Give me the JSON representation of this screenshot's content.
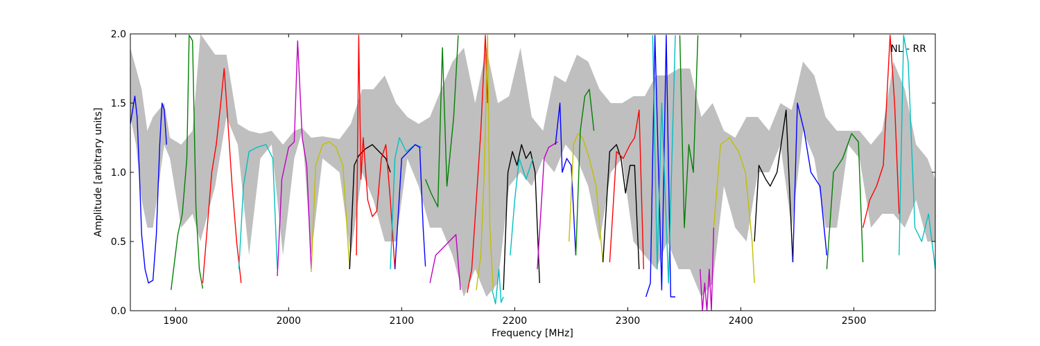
{
  "chart_data": {
    "type": "line",
    "title": "",
    "xlabel": "Frequency [MHz]",
    "ylabel": "Amplitude [arbitrary units]",
    "xlim": [
      1860,
      2572
    ],
    "ylim": [
      0.0,
      2.0
    ],
    "xticks": [
      1900,
      2000,
      2100,
      2200,
      2300,
      2400,
      2500
    ],
    "xtick_labels": [
      "1900",
      "2000",
      "2100",
      "2200",
      "2300",
      "2400",
      "2500"
    ],
    "yticks": [
      0.0,
      0.5,
      1.0,
      1.5,
      2.0
    ],
    "ytick_labels": [
      "0.0",
      "0.5",
      "1.0",
      "1.5",
      "2.0"
    ],
    "annotation": "NL - RR",
    "annotation_position": "top-right",
    "grid": false,
    "colors": {
      "band": "#bfbfbf",
      "blue": "#0000ff",
      "green": "#008000",
      "red": "#ff0000",
      "cyan": "#00bfbf",
      "magenta": "#bf00bf",
      "yellow": "#bfbf00",
      "black": "#000000"
    },
    "envelope": {
      "x": [
        1860,
        1865,
        1870,
        1875,
        1880,
        1890,
        1895,
        1905,
        1915,
        1922,
        1935,
        1945,
        1955,
        1965,
        1975,
        1985,
        1995,
        2005,
        2012,
        2020,
        2030,
        2045,
        2055,
        2065,
        2075,
        2085,
        2095,
        2105,
        2115,
        2125,
        2135,
        2145,
        2155,
        2165,
        2175,
        2185,
        2195,
        2205,
        2215,
        2225,
        2235,
        2245,
        2255,
        2265,
        2275,
        2285,
        2295,
        2305,
        2315,
        2325,
        2335,
        2345,
        2355,
        2365,
        2375,
        2385,
        2395,
        2405,
        2415,
        2425,
        2435,
        2445,
        2455,
        2465,
        2475,
        2485,
        2495,
        2505,
        2515,
        2525,
        2535,
        2545,
        2555,
        2565,
        2572
      ],
      "upper": [
        1.9,
        1.75,
        1.6,
        1.3,
        1.4,
        1.5,
        1.25,
        1.2,
        1.3,
        2.0,
        1.85,
        1.85,
        1.35,
        1.3,
        1.28,
        1.3,
        1.2,
        1.3,
        1.32,
        1.25,
        1.26,
        1.24,
        1.35,
        1.6,
        1.6,
        1.7,
        1.5,
        1.4,
        1.35,
        1.4,
        1.6,
        1.8,
        1.9,
        1.5,
        1.9,
        1.5,
        1.55,
        1.9,
        1.4,
        1.3,
        1.7,
        1.65,
        1.85,
        1.8,
        1.6,
        1.5,
        1.5,
        1.55,
        1.55,
        1.7,
        1.7,
        1.75,
        1.75,
        1.4,
        1.5,
        1.3,
        1.25,
        1.4,
        1.4,
        1.3,
        1.5,
        1.45,
        1.8,
        1.7,
        1.4,
        1.3,
        1.3,
        1.3,
        1.2,
        1.3,
        1.8,
        1.6,
        1.2,
        1.1,
        0.95
      ],
      "lower": [
        1.4,
        1.2,
        0.8,
        0.6,
        0.6,
        1.2,
        1.1,
        0.6,
        0.7,
        0.5,
        0.9,
        1.4,
        1.2,
        0.4,
        1.1,
        1.2,
        0.4,
        1.1,
        1.3,
        0.4,
        1.1,
        1.0,
        0.4,
        1.0,
        0.8,
        0.5,
        0.5,
        1.1,
        0.9,
        0.6,
        0.6,
        0.4,
        0.1,
        0.3,
        0.1,
        0.2,
        0.9,
        1.0,
        0.9,
        1.1,
        1.0,
        1.2,
        1.1,
        0.9,
        0.5,
        1.0,
        1.1,
        0.5,
        0.4,
        0.3,
        0.5,
        0.3,
        0.3,
        0.1,
        0.2,
        0.9,
        0.6,
        0.5,
        1.0,
        1.0,
        1.2,
        0.6,
        1.3,
        1.1,
        0.6,
        0.6,
        1.2,
        1.1,
        0.6,
        0.7,
        0.7,
        0.6,
        0.8,
        0.5,
        0.5
      ]
    },
    "series": [
      {
        "color": "blue",
        "x": [
          1860,
          1862,
          1864,
          1866,
          1868,
          1870,
          1873,
          1876,
          1880,
          1883,
          1886,
          1888,
          1890,
          1892
        ],
        "y": [
          1.35,
          1.45,
          1.55,
          1.4,
          1.0,
          0.55,
          0.3,
          0.2,
          0.22,
          0.55,
          1.2,
          1.5,
          1.45,
          1.2
        ]
      },
      {
        "color": "green",
        "x": [
          1896,
          1899,
          1902,
          1906,
          1910,
          1912,
          1913,
          1915,
          1918,
          1921,
          1924
        ],
        "y": [
          0.15,
          0.35,
          0.55,
          0.7,
          1.1,
          1.99,
          1.98,
          1.95,
          0.75,
          0.3,
          0.16
        ]
      },
      {
        "color": "red",
        "x": [
          1924,
          1928,
          1932,
          1936,
          1940,
          1943,
          1946,
          1950,
          1954,
          1958
        ],
        "y": [
          0.2,
          0.6,
          1.0,
          1.2,
          1.5,
          1.75,
          1.4,
          0.9,
          0.5,
          0.2
        ]
      },
      {
        "color": "cyan",
        "x": [
          1956,
          1960,
          1965,
          1972,
          1980,
          1986,
          1990
        ],
        "y": [
          0.3,
          0.9,
          1.15,
          1.18,
          1.2,
          1.1,
          0.3
        ]
      },
      {
        "color": "magenta",
        "x": [
          1990,
          1994,
          2000,
          2005,
          2008,
          2012,
          2016,
          2020
        ],
        "y": [
          0.25,
          0.95,
          1.18,
          1.22,
          1.95,
          1.25,
          1.05,
          0.3
        ]
      },
      {
        "color": "yellow",
        "x": [
          2020,
          2024,
          2030,
          2036,
          2042,
          2048,
          2054
        ],
        "y": [
          0.28,
          1.05,
          1.2,
          1.22,
          1.18,
          1.05,
          0.3
        ]
      },
      {
        "color": "black",
        "x": [
          2054,
          2058,
          2062,
          2068,
          2074,
          2080,
          2086,
          2090
        ],
        "y": [
          0.3,
          1.05,
          1.12,
          1.17,
          1.2,
          1.15,
          1.1,
          1.0
        ]
      },
      {
        "color": "red",
        "x": [
          2060,
          2062,
          2064,
          2066,
          2070,
          2074,
          2078,
          2082,
          2086,
          2090,
          2094
        ],
        "y": [
          0.4,
          1.99,
          0.95,
          1.25,
          0.8,
          0.68,
          0.72,
          1.1,
          1.2,
          0.8,
          0.3
        ]
      },
      {
        "color": "cyan",
        "x": [
          2090,
          2094,
          2098,
          2104,
          2112,
          2118
        ],
        "y": [
          0.3,
          1.1,
          1.25,
          1.15,
          1.2,
          1.18
        ]
      },
      {
        "color": "blue",
        "x": [
          2094,
          2100,
          2106,
          2112,
          2116,
          2119,
          2121
        ],
        "y": [
          0.3,
          1.1,
          1.15,
          1.2,
          1.18,
          0.6,
          0.32
        ]
      },
      {
        "color": "green",
        "x": [
          2121,
          2126,
          2132,
          2136,
          2140,
          2146,
          2150
        ],
        "y": [
          0.95,
          0.85,
          0.75,
          1.9,
          0.9,
          1.4,
          1.99
        ]
      },
      {
        "color": "magenta",
        "x": [
          2125,
          2130,
          2136,
          2142,
          2148,
          2152
        ],
        "y": [
          0.2,
          0.4,
          0.45,
          0.5,
          0.55,
          0.15
        ]
      },
      {
        "color": "red",
        "x": [
          2158,
          2162,
          2166,
          2170,
          2174,
          2176
        ],
        "y": [
          0.13,
          0.3,
          0.8,
          1.3,
          1.99,
          1.5
        ]
      },
      {
        "color": "yellow",
        "x": [
          2166,
          2170,
          2173,
          2176,
          2178,
          2181
        ],
        "y": [
          0.15,
          0.4,
          1.0,
          1.99,
          0.6,
          0.15
        ]
      },
      {
        "color": "cyan",
        "x": [
          2180,
          2183,
          2186,
          2188,
          2190
        ],
        "y": [
          0.15,
          0.05,
          0.3,
          0.06,
          0.1
        ]
      },
      {
        "color": "black",
        "x": [
          2190,
          2194,
          2198,
          2202,
          2206,
          2210,
          2214,
          2218,
          2222
        ],
        "y": [
          0.15,
          1.0,
          1.15,
          1.05,
          1.2,
          1.1,
          1.15,
          1.0,
          0.2
        ]
      },
      {
        "color": "cyan",
        "x": [
          2196,
          2200,
          2204,
          2210,
          2216
        ],
        "y": [
          0.4,
          0.8,
          1.1,
          0.95,
          1.1
        ]
      },
      {
        "color": "magenta",
        "x": [
          2220,
          2226,
          2230,
          2234,
          2238
        ],
        "y": [
          0.3,
          1.1,
          1.18,
          1.2,
          1.22
        ]
      },
      {
        "color": "blue",
        "x": [
          2236,
          2240,
          2242,
          2246,
          2250,
          2254
        ],
        "y": [
          1.2,
          1.5,
          1.0,
          1.1,
          1.05,
          0.4
        ]
      },
      {
        "color": "yellow",
        "x": [
          2248,
          2252,
          2256,
          2260,
          2266,
          2272,
          2278
        ],
        "y": [
          0.5,
          1.2,
          1.28,
          1.25,
          1.1,
          0.9,
          0.35
        ]
      },
      {
        "color": "green",
        "x": [
          2254,
          2258,
          2262,
          2266,
          2270
        ],
        "y": [
          0.4,
          1.3,
          1.55,
          1.6,
          1.3
        ]
      },
      {
        "color": "black",
        "x": [
          2278,
          2284,
          2290,
          2294,
          2298,
          2302,
          2306,
          2310
        ],
        "y": [
          0.35,
          1.15,
          1.2,
          1.1,
          0.85,
          1.05,
          1.05,
          0.3
        ]
      },
      {
        "color": "red",
        "x": [
          2284,
          2290,
          2296,
          2302,
          2306,
          2310,
          2314
        ],
        "y": [
          0.35,
          1.15,
          1.1,
          1.2,
          1.25,
          1.45,
          0.3
        ]
      },
      {
        "color": "blue",
        "x": [
          2316,
          2320,
          2324,
          2330,
          2334,
          2338,
          2342
        ],
        "y": [
          0.1,
          0.2,
          1.99,
          0.15,
          1.99,
          0.1,
          0.1
        ]
      },
      {
        "color": "cyan",
        "x": [
          2322,
          2326,
          2330,
          2336,
          2342
        ],
        "y": [
          1.99,
          0.3,
          1.5,
          0.2,
          1.99
        ]
      },
      {
        "color": "green",
        "x": [
          2346,
          2350,
          2354,
          2358,
          2362
        ],
        "y": [
          1.99,
          0.6,
          1.2,
          1.0,
          1.99
        ]
      },
      {
        "color": "magenta",
        "x": [
          2364,
          2366,
          2368,
          2370,
          2372,
          2374,
          2376
        ],
        "y": [
          0.3,
          0.0,
          0.2,
          0.0,
          0.3,
          0.0,
          0.6
        ]
      },
      {
        "color": "yellow",
        "x": [
          2376,
          2382,
          2390,
          2398,
          2404,
          2410,
          2412
        ],
        "y": [
          0.6,
          1.2,
          1.25,
          1.15,
          1.0,
          0.5,
          0.2
        ]
      },
      {
        "color": "black",
        "x": [
          2412,
          2416,
          2422,
          2426,
          2432,
          2440,
          2444,
          2446
        ],
        "y": [
          0.5,
          1.05,
          0.95,
          0.9,
          1.0,
          1.45,
          0.7,
          0.35
        ]
      },
      {
        "color": "blue",
        "x": [
          2446,
          2450,
          2456,
          2462,
          2470,
          2476
        ],
        "y": [
          0.35,
          1.5,
          1.3,
          1.0,
          0.9,
          0.4
        ]
      },
      {
        "color": "green",
        "x": [
          2476,
          2482,
          2490,
          2498,
          2504,
          2508
        ],
        "y": [
          0.3,
          1.0,
          1.1,
          1.28,
          1.22,
          0.35
        ]
      },
      {
        "color": "red",
        "x": [
          2508,
          2514,
          2520,
          2526,
          2532,
          2536,
          2540
        ],
        "y": [
          0.6,
          0.8,
          0.9,
          1.05,
          1.99,
          1.5,
          0.7
        ]
      },
      {
        "color": "cyan",
        "x": [
          2540,
          2544,
          2548,
          2554,
          2560,
          2566,
          2572
        ],
        "y": [
          0.4,
          1.99,
          1.8,
          0.6,
          0.5,
          0.7,
          0.3
        ]
      }
    ]
  }
}
